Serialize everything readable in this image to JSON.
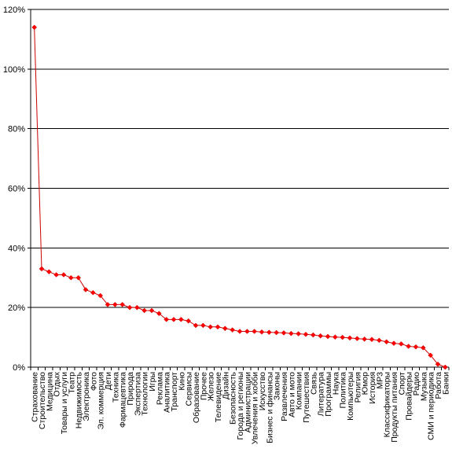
{
  "chart_data": {
    "type": "line",
    "title": "",
    "xlabel": "",
    "ylabel": "",
    "ylim": [
      0,
      120
    ],
    "y_ticks": [
      "0%",
      "20%",
      "40%",
      "60%",
      "80%",
      "100%",
      "120%"
    ],
    "grid": "horizontal",
    "legend": "none",
    "colors": {
      "line": "#cc0000",
      "marker": "#ff0000",
      "grid": "#000000",
      "background": "#ffffff"
    },
    "categories": [
      "Страхование",
      "Строительство",
      "Медицина",
      "Отдых",
      "Товары и услуги",
      "Театр",
      "Недвижимость",
      "Электроника",
      "Фото",
      "Эл. коммерция",
      "Дети",
      "Техника",
      "Фармацевтика",
      "Природа",
      "Экспертиза",
      "Технологии",
      "Игры",
      "Реклама",
      "Аналитика",
      "Транспорт",
      "Кино",
      "Сервисы",
      "Образование",
      "Прочее",
      "Железо",
      "Телевидение",
      "Дизайн",
      "Безопасность",
      "Города и регионы",
      "Администрации",
      "Увлечения и хобби",
      "Искусство",
      "Бизнес и финансы",
      "Законы",
      "Развлечения",
      "Авто и мото",
      "Компании",
      "Путешествия",
      "Связь",
      "Литература",
      "Программы",
      "Наука",
      "Политика",
      "Компьютеры",
      "Религия",
      "Юмор",
      "История",
      "MP3",
      "Классификаторы",
      "Продукты питания",
      "Спорт",
      "Провайдеры",
      "Радио",
      "Музыка",
      "СМИ и периодика",
      "Работа",
      "Банки"
    ],
    "series": [
      {
        "values": [
          114,
          33,
          32,
          31,
          31,
          30,
          30,
          26,
          25,
          24,
          21,
          21,
          21,
          20,
          20,
          19,
          19,
          18,
          16,
          16,
          16,
          15.5,
          14,
          14,
          13.5,
          13.5,
          13,
          12.5,
          12,
          12,
          12,
          11.8,
          11.7,
          11.6,
          11.5,
          11.3,
          11.2,
          11,
          10.8,
          10.5,
          10.3,
          10.1,
          10,
          9.8,
          9.6,
          9.4,
          9.3,
          9,
          8.5,
          8,
          7.8,
          7,
          6.8,
          6.5,
          4,
          1,
          0
        ]
      }
    ]
  }
}
